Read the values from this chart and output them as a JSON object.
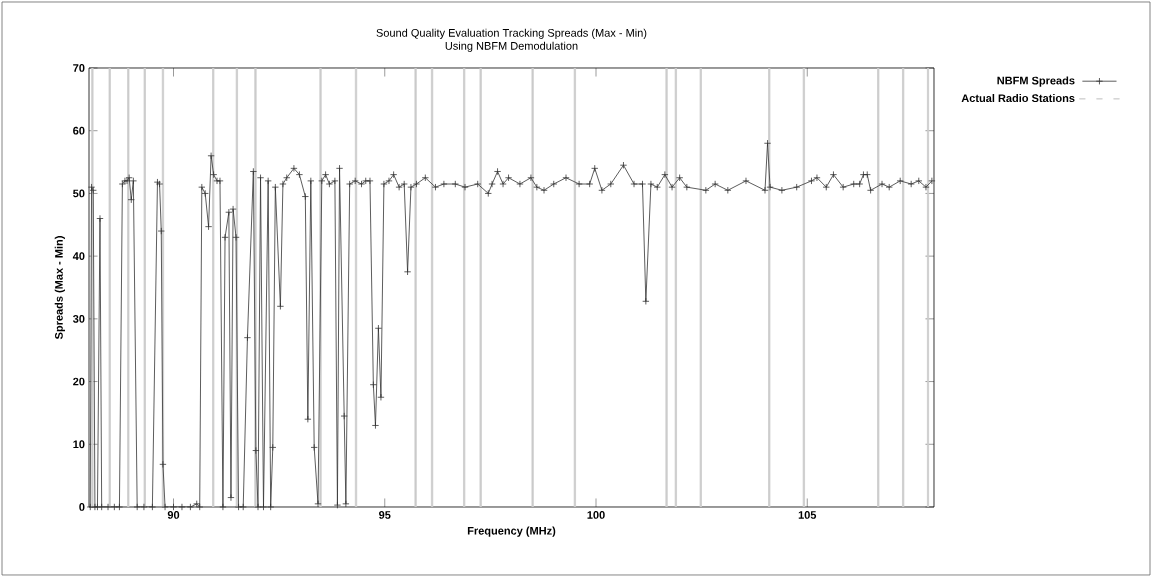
{
  "chart_data": {
    "type": "line",
    "title": "Sound Quality Evaluation Tracking Spreads (Max - Min)",
    "subtitle": "Using NBFM Demodulation",
    "xlabel": "Frequency (MHz)",
    "ylabel": "Spreads (Max - Min)",
    "xlim": [
      88,
      108
    ],
    "ylim": [
      0,
      70
    ],
    "xticks": [
      90,
      95,
      100,
      105
    ],
    "yticks": [
      0,
      10,
      20,
      30,
      40,
      50,
      60,
      70
    ],
    "grid": false,
    "legend": "top right",
    "series": [
      {
        "name": "NBFM Spreads",
        "color": "#333333",
        "marker": "cross",
        "line_style": "solid",
        "x": [
          88.03,
          88.06,
          88.1,
          88.14,
          88.2,
          88.26,
          88.3,
          88.45,
          88.6,
          88.72,
          88.79,
          88.85,
          88.9,
          88.95,
          89.0,
          89.05,
          89.14,
          89.3,
          89.5,
          89.62,
          89.67,
          89.71,
          89.75,
          89.8,
          90.0,
          90.2,
          90.4,
          90.55,
          90.62,
          90.67,
          90.75,
          90.83,
          90.89,
          90.95,
          91.03,
          91.1,
          91.17,
          91.22,
          91.31,
          91.36,
          91.41,
          91.48,
          91.54,
          91.65,
          91.75,
          91.89,
          91.95,
          92.0,
          92.06,
          92.13,
          92.24,
          92.3,
          92.35,
          92.41,
          92.53,
          92.59,
          92.68,
          92.85,
          92.98,
          93.12,
          93.18,
          93.25,
          93.33,
          93.42,
          93.51,
          93.6,
          93.69,
          93.82,
          93.88,
          93.93,
          94.04,
          94.08,
          94.17,
          94.3,
          94.45,
          94.55,
          94.65,
          94.73,
          94.78,
          94.85,
          94.91,
          94.98,
          95.1,
          95.21,
          95.34,
          95.46,
          95.54,
          95.62,
          95.75,
          95.96,
          96.2,
          96.4,
          96.67,
          96.9,
          97.2,
          97.45,
          97.54,
          97.67,
          97.8,
          97.93,
          98.2,
          98.46,
          98.6,
          98.77,
          99.0,
          99.29,
          99.6,
          99.85,
          99.97,
          100.14,
          100.35,
          100.65,
          100.9,
          101.1,
          101.18,
          101.3,
          101.45,
          101.63,
          101.8,
          101.98,
          102.15,
          102.6,
          102.82,
          103.12,
          103.55,
          104.0,
          104.06,
          104.12,
          104.4,
          104.75,
          105.1,
          105.23,
          105.45,
          105.62,
          105.85,
          106.1,
          106.24,
          106.33,
          106.42,
          106.5,
          106.77,
          106.94,
          107.2,
          107.46,
          107.64,
          107.81,
          107.95
        ],
        "values": [
          0,
          51,
          50.5,
          0,
          0,
          46,
          0,
          0,
          0,
          0,
          51.5,
          52,
          52,
          52.5,
          49,
          52,
          0,
          0,
          0,
          51.8,
          51.5,
          44,
          6.8,
          0,
          0,
          0,
          0,
          0.5,
          0,
          51,
          50,
          44.7,
          56,
          53,
          52,
          52,
          0,
          43,
          47,
          1.5,
          47.5,
          43,
          0,
          0,
          27,
          53.5,
          9,
          0,
          52.5,
          0,
          52,
          0,
          9.5,
          51,
          32,
          51.5,
          52.5,
          54,
          53,
          49.5,
          14,
          52,
          9.5,
          0.5,
          52,
          53,
          51.5,
          52,
          0.3,
          54,
          14.5,
          0.5,
          51.5,
          52,
          51.5,
          52,
          52,
          19.5,
          13,
          28.5,
          17.5,
          51.5,
          52,
          53,
          51,
          51.5,
          37.5,
          51,
          51.5,
          52.5,
          51,
          51.5,
          51.5,
          51,
          51.5,
          50,
          51.5,
          53.5,
          51.5,
          52.5,
          51.5,
          52.5,
          51,
          50.5,
          51.5,
          52.5,
          51.5,
          51.5,
          54,
          50.5,
          51.5,
          54.5,
          51.5,
          51.5,
          32.8,
          51.5,
          51,
          53,
          51,
          52.5,
          51,
          50.5,
          51.5,
          50.5,
          52,
          50.5,
          58,
          51,
          50.5,
          51,
          52,
          52.5,
          51,
          53,
          51,
          51.5,
          51.5,
          53,
          53,
          50.5,
          51.5,
          51,
          52,
          51.5,
          52,
          51,
          52
        ]
      },
      {
        "name": "Actual Radio Stations",
        "type": "bar",
        "color": "#cccccc",
        "marker": "none",
        "x": [
          88.08,
          88.49,
          88.93,
          89.32,
          89.75,
          90.94,
          91.5,
          91.94,
          93.48,
          94.32,
          95.73,
          96.12,
          96.88,
          97.27,
          98.5,
          99.5,
          101.67,
          101.89,
          102.48,
          104.1,
          104.92,
          106.68,
          107.27,
          107.86
        ],
        "values": [
          70,
          70,
          70,
          70,
          70,
          70,
          70,
          70,
          70,
          70,
          70,
          70,
          70,
          70,
          70,
          70,
          70,
          70,
          70,
          70,
          70,
          70,
          70,
          70
        ]
      }
    ]
  }
}
